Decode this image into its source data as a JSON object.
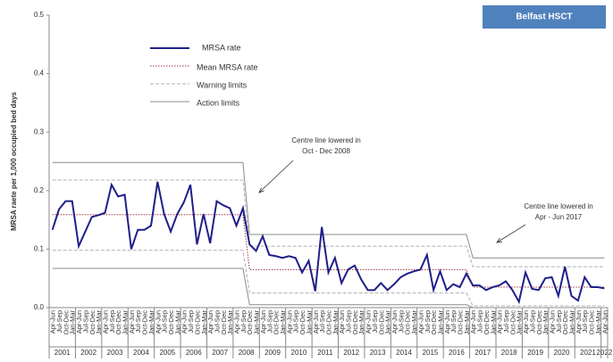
{
  "chart_data": {
    "type": "line",
    "title": "Belfast HSCT",
    "y_label": "MRSA raete per 1,000 occupied bed days",
    "categories": [
      "Apr-Jun",
      "Jul-Sep",
      "Oct-Dec",
      "Jan-Mar",
      "Apr-Jun",
      "Jul-Sep",
      "Oct-Dec",
      "Jan-Mar",
      "Apr-Jun",
      "Jul-Sep",
      "Oct-Dec",
      "Jan-Mar",
      "Apr-Jun",
      "Jul-Sep",
      "Oct-Dec",
      "Jan-Mar",
      "Apr-Jun",
      "Jul-Sep",
      "Oct-Dec",
      "Jan-Mar",
      "Apr-Jun",
      "Jul-Sep",
      "Oct-Dec",
      "Jan-Mar",
      "Apr-Jun",
      "Jul-Sep",
      "Oct-Dec",
      "Jan-Mar",
      "Apr-Jun",
      "Jul-Sep",
      "Oct-Dec",
      "Jan-Mar",
      "Apr-Jun",
      "Jul-Sep",
      "Oct-Dec",
      "Jan-Mar",
      "Apr-Jun",
      "Jul-Sep",
      "Oct-Dec",
      "Jan-Mar",
      "Apr-Jun",
      "Jul-Sep",
      "Oct-Dec",
      "Jan-Mar",
      "Apr-Jun",
      "Jul-Sep",
      "Oct-Dec",
      "Jan-Mar",
      "Apr-Jun",
      "Jul-Sep",
      "Oct-Dec",
      "Jan-Mar",
      "Apr-Jun",
      "Jul-Sep",
      "Oct-Dec",
      "Jan-Mar",
      "Apr-Jun",
      "Jul-Sep",
      "Oct-Dec",
      "Jan-Mar",
      "Apr-Jun",
      "Jul-Sep",
      "Oct-Dec",
      "Jan-Mar",
      "Apr-Jun",
      "Jul-Sep",
      "Oct-Dec",
      "Jan-Mar",
      "Apr-Jun",
      "Jul-Sep",
      "Oct-Dec",
      "Jan-Mar",
      "Apr-Jun",
      "Jul-Sep",
      "Oct-Dec",
      "Jan-Mar",
      "Apr-Jun",
      "Jul-Sep",
      "Oct-Dec",
      "Jan-Mar",
      "Apr-Jun",
      "Jul-Sep",
      "Oct-Dec",
      "Jan-Mar",
      "Apr-Jun"
    ],
    "years": [
      "2001",
      "2002",
      "2003",
      "2004",
      "2005",
      "2006",
      "2007",
      "2008",
      "2009",
      "2010",
      "2011",
      "2012",
      "2013",
      "2014",
      "2015",
      "2016",
      "2017",
      "2018",
      "2019",
      "2020",
      "2021",
      "2022"
    ],
    "ylim": [
      0,
      0.5
    ],
    "yticks": [
      {
        "value": 0,
        "label": "0.0"
      },
      0.1,
      0.2,
      0.3,
      0.4,
      0.5
    ],
    "series": [
      {
        "name": "MRSA rate",
        "color": "#1f1f8a",
        "style": "solid",
        "width": 2,
        "values": [
          0.133,
          0.168,
          0.182,
          0.182,
          0.105,
          0.13,
          0.155,
          0.158,
          0.162,
          0.21,
          0.19,
          0.193,
          0.1,
          0.133,
          0.133,
          0.14,
          0.215,
          0.16,
          0.13,
          0.16,
          0.18,
          0.21,
          0.108,
          0.16,
          0.11,
          0.182,
          0.175,
          0.17,
          0.14,
          0.17,
          0.108,
          0.097,
          0.122,
          0.09,
          0.088,
          0.085,
          0.088,
          0.085,
          0.06,
          0.08,
          0.028,
          0.138,
          0.06,
          0.085,
          0.042,
          0.065,
          0.072,
          0.048,
          0.03,
          0.03,
          0.042,
          0.03,
          0.04,
          0.052,
          0.058,
          0.062,
          0.065,
          0.09,
          0.03,
          0.062,
          0.03,
          0.04,
          0.035,
          0.058,
          0.038,
          0.038,
          0.03,
          0.035,
          0.038,
          0.045,
          0.03,
          0.01,
          0.06,
          0.032,
          0.03,
          0.05,
          0.052,
          0.02,
          0.07,
          0.02,
          0.012,
          0.052,
          0.035,
          0.035,
          0.033
        ]
      },
      {
        "name": "Mean MRSA rate",
        "color": "#a0303a",
        "style": "dotted",
        "width": 1,
        "values": [
          0.159,
          0.159,
          0.159,
          0.159,
          0.159,
          0.159,
          0.159,
          0.159,
          0.159,
          0.159,
          0.159,
          0.159,
          0.159,
          0.159,
          0.159,
          0.159,
          0.159,
          0.159,
          0.159,
          0.159,
          0.159,
          0.159,
          0.159,
          0.159,
          0.159,
          0.159,
          0.159,
          0.159,
          0.159,
          0.159,
          0.065,
          0.065,
          0.065,
          0.065,
          0.065,
          0.065,
          0.065,
          0.065,
          0.065,
          0.065,
          0.065,
          0.065,
          0.065,
          0.065,
          0.065,
          0.065,
          0.065,
          0.065,
          0.065,
          0.065,
          0.065,
          0.065,
          0.065,
          0.065,
          0.065,
          0.065,
          0.065,
          0.065,
          0.065,
          0.065,
          0.065,
          0.065,
          0.065,
          0.065,
          0.035,
          0.035,
          0.035,
          0.035,
          0.035,
          0.035,
          0.035,
          0.035,
          0.035,
          0.035,
          0.035,
          0.035,
          0.035,
          0.035,
          0.035,
          0.035,
          0.035,
          0.035,
          0.035,
          0.035,
          0.035
        ]
      },
      {
        "name": "Warning limits",
        "color": "#b0b0b0",
        "style": "dashed",
        "width": 1,
        "values": [
          0.218,
          0.218,
          0.218,
          0.218,
          0.218,
          0.218,
          0.218,
          0.218,
          0.218,
          0.218,
          0.218,
          0.218,
          0.218,
          0.218,
          0.218,
          0.218,
          0.218,
          0.218,
          0.218,
          0.218,
          0.218,
          0.218,
          0.218,
          0.218,
          0.218,
          0.218,
          0.218,
          0.218,
          0.218,
          0.218,
          0.105,
          0.105,
          0.105,
          0.105,
          0.105,
          0.105,
          0.105,
          0.105,
          0.105,
          0.105,
          0.105,
          0.105,
          0.105,
          0.105,
          0.105,
          0.105,
          0.105,
          0.105,
          0.105,
          0.105,
          0.105,
          0.105,
          0.105,
          0.105,
          0.105,
          0.105,
          0.105,
          0.105,
          0.105,
          0.105,
          0.105,
          0.105,
          0.105,
          0.105,
          0.07,
          0.07,
          0.07,
          0.07,
          0.07,
          0.07,
          0.07,
          0.07,
          0.07,
          0.07,
          0.07,
          0.07,
          0.07,
          0.07,
          0.07,
          0.07,
          0.07,
          0.07,
          0.07,
          0.07,
          0.07
        ],
        "lower": [
          0.098,
          0.098,
          0.098,
          0.098,
          0.098,
          0.098,
          0.098,
          0.098,
          0.098,
          0.098,
          0.098,
          0.098,
          0.098,
          0.098,
          0.098,
          0.098,
          0.098,
          0.098,
          0.098,
          0.098,
          0.098,
          0.098,
          0.098,
          0.098,
          0.098,
          0.098,
          0.098,
          0.098,
          0.098,
          0.098,
          0.025,
          0.025,
          0.025,
          0.025,
          0.025,
          0.025,
          0.025,
          0.025,
          0.025,
          0.025,
          0.025,
          0.025,
          0.025,
          0.025,
          0.025,
          0.025,
          0.025,
          0.025,
          0.025,
          0.025,
          0.025,
          0.025,
          0.025,
          0.025,
          0.025,
          0.025,
          0.025,
          0.025,
          0.025,
          0.025,
          0.025,
          0.025,
          0.025,
          0.025,
          0.003,
          0.003,
          0.003,
          0.003,
          0.003,
          0.003,
          0.003,
          0.003,
          0.003,
          0.003,
          0.003,
          0.003,
          0.003,
          0.003,
          0.003,
          0.003,
          0.003,
          0.003,
          0.003,
          0.003,
          0.003
        ]
      },
      {
        "name": "Action limits",
        "color": "#8c8c8c",
        "style": "solid",
        "width": 1,
        "values": [
          0.248,
          0.248,
          0.248,
          0.248,
          0.248,
          0.248,
          0.248,
          0.248,
          0.248,
          0.248,
          0.248,
          0.248,
          0.248,
          0.248,
          0.248,
          0.248,
          0.248,
          0.248,
          0.248,
          0.248,
          0.248,
          0.248,
          0.248,
          0.248,
          0.248,
          0.248,
          0.248,
          0.248,
          0.248,
          0.248,
          0.125,
          0.125,
          0.125,
          0.125,
          0.125,
          0.125,
          0.125,
          0.125,
          0.125,
          0.125,
          0.125,
          0.125,
          0.125,
          0.125,
          0.125,
          0.125,
          0.125,
          0.125,
          0.125,
          0.125,
          0.125,
          0.125,
          0.125,
          0.125,
          0.125,
          0.125,
          0.125,
          0.125,
          0.125,
          0.125,
          0.125,
          0.125,
          0.125,
          0.125,
          0.085,
          0.085,
          0.085,
          0.085,
          0.085,
          0.085,
          0.085,
          0.085,
          0.085,
          0.085,
          0.085,
          0.085,
          0.085,
          0.085,
          0.085,
          0.085,
          0.085,
          0.085,
          0.085,
          0.085,
          0.085
        ],
        "lower": [
          0.067,
          0.067,
          0.067,
          0.067,
          0.067,
          0.067,
          0.067,
          0.067,
          0.067,
          0.067,
          0.067,
          0.067,
          0.067,
          0.067,
          0.067,
          0.067,
          0.067,
          0.067,
          0.067,
          0.067,
          0.067,
          0.067,
          0.067,
          0.067,
          0.067,
          0.067,
          0.067,
          0.067,
          0.067,
          0.067,
          0.005,
          0.005,
          0.005,
          0.005,
          0.005,
          0.005,
          0.005,
          0.005,
          0.005,
          0.005,
          0.005,
          0.005,
          0.005,
          0.005,
          0.005,
          0.005,
          0.005,
          0.005,
          0.005,
          0.005,
          0.005,
          0.005,
          0.005,
          0.005,
          0.005,
          0.005,
          0.005,
          0.005,
          0.005,
          0.005,
          0.005,
          0.005,
          0.005,
          0.005,
          0.0,
          0.0,
          0.0,
          0.0,
          0.0,
          0.0,
          0.0,
          0.0,
          0.0,
          0.0,
          0.0,
          0.0,
          0.0,
          0.0,
          0.0,
          0.0,
          0.0,
          0.0,
          0.0,
          0.0,
          0.0
        ]
      }
    ],
    "annotations": [
      {
        "lines": [
          "Centre line lowered in",
          "Oct - Dec 2008"
        ]
      },
      {
        "lines": [
          "Centre line lowered in",
          "Apr - Jun 2017"
        ]
      }
    ]
  }
}
